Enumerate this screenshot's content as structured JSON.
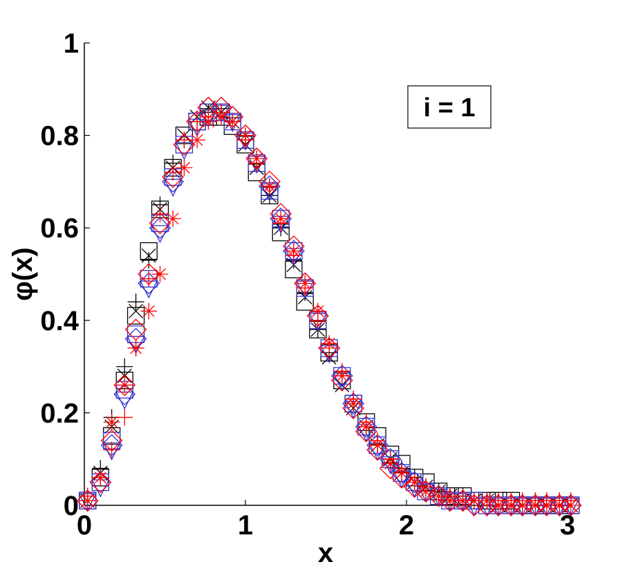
{
  "chart_data": {
    "type": "scatter",
    "title": "",
    "xlabel": "x",
    "ylabel": "φ(x)",
    "xlim": [
      0,
      3
    ],
    "ylim": [
      0,
      1
    ],
    "xticks": [
      "0",
      "1",
      "2",
      "3"
    ],
    "yticks": [
      "0",
      "0.2",
      "0.4",
      "0.6",
      "0.8",
      "1"
    ],
    "grid": false,
    "annotation": "i = 1",
    "annotation_position": "top-right",
    "colors": {
      "black": "#000000",
      "blue": "#3333cc",
      "red": "#ff0000"
    },
    "x": [
      0.02,
      0.1,
      0.17,
      0.25,
      0.32,
      0.4,
      0.47,
      0.55,
      0.62,
      0.7,
      0.77,
      0.85,
      0.92,
      1.0,
      1.07,
      1.15,
      1.22,
      1.3,
      1.37,
      1.45,
      1.52,
      1.6,
      1.67,
      1.75,
      1.82,
      1.9,
      1.97,
      2.05,
      2.12,
      2.2,
      2.27,
      2.35,
      2.42,
      2.5,
      2.57,
      2.65,
      2.72,
      2.8,
      2.87,
      2.95,
      3.02
    ],
    "series": [
      {
        "marker": "plus",
        "color": "#000000",
        "values": [
          0.02,
          0.08,
          0.19,
          0.3,
          0.44,
          0.53,
          0.65,
          0.74,
          0.79,
          0.83,
          0.85,
          0.85,
          0.83,
          0.79,
          0.74,
          0.67,
          0.6,
          0.53,
          0.46,
          0.38,
          0.33,
          0.28,
          0.23,
          0.17,
          0.13,
          0.1,
          0.08,
          0.06,
          0.04,
          0.03,
          0.02,
          0.02,
          0.01,
          0.01,
          0.01,
          0.01,
          0.01,
          0.01,
          0.01,
          0.01,
          0.01
        ]
      },
      {
        "marker": "square",
        "color": "#000000",
        "values": [
          0.01,
          0.06,
          0.15,
          0.27,
          0.41,
          0.55,
          0.64,
          0.73,
          0.8,
          0.83,
          0.84,
          0.84,
          0.82,
          0.78,
          0.72,
          0.67,
          0.59,
          0.51,
          0.44,
          0.38,
          0.33,
          0.27,
          0.22,
          0.18,
          0.15,
          0.11,
          0.09,
          0.06,
          0.05,
          0.03,
          0.02,
          0.02,
          0.01,
          0.01,
          0.01,
          0.01,
          0.0,
          0.0,
          0.0,
          0.0,
          0.0
        ]
      },
      {
        "marker": "cross",
        "color": "#000000",
        "values": [
          0.01,
          0.07,
          0.17,
          0.28,
          0.42,
          0.54,
          0.64,
          0.73,
          0.8,
          0.84,
          0.86,
          0.85,
          0.83,
          0.78,
          0.73,
          0.67,
          0.6,
          0.52,
          0.45,
          0.38,
          0.32,
          0.26,
          0.21,
          0.17,
          0.13,
          0.1,
          0.07,
          0.05,
          0.04,
          0.03,
          0.02,
          0.01,
          0.01,
          0.01,
          0.0,
          0.0,
          0.0,
          0.0,
          0.0,
          0.0,
          0.0
        ]
      },
      {
        "marker": "square",
        "color": "#3333cc",
        "values": [
          0.01,
          0.05,
          0.14,
          0.25,
          0.37,
          0.49,
          0.61,
          0.71,
          0.78,
          0.83,
          0.85,
          0.85,
          0.83,
          0.79,
          0.74,
          0.68,
          0.62,
          0.55,
          0.47,
          0.4,
          0.34,
          0.28,
          0.22,
          0.17,
          0.13,
          0.1,
          0.07,
          0.05,
          0.03,
          0.02,
          0.01,
          0.01,
          0.01,
          0.0,
          0.0,
          0.0,
          0.0,
          0.0,
          0.0,
          0.0,
          0.0
        ]
      },
      {
        "marker": "diamond",
        "color": "#3333cc",
        "values": [
          0.01,
          0.05,
          0.13,
          0.24,
          0.36,
          0.48,
          0.6,
          0.7,
          0.78,
          0.83,
          0.86,
          0.86,
          0.84,
          0.8,
          0.75,
          0.69,
          0.62,
          0.55,
          0.48,
          0.41,
          0.34,
          0.28,
          0.22,
          0.17,
          0.13,
          0.1,
          0.07,
          0.05,
          0.03,
          0.02,
          0.01,
          0.01,
          0.0,
          0.0,
          0.0,
          0.0,
          0.0,
          0.0,
          0.0,
          0.0,
          0.0
        ]
      },
      {
        "marker": "triangle-down",
        "color": "#3333cc",
        "values": [
          0.01,
          0.04,
          0.12,
          0.23,
          0.35,
          0.47,
          0.59,
          0.69,
          0.77,
          0.82,
          0.84,
          0.85,
          0.83,
          0.79,
          0.74,
          0.68,
          0.61,
          0.54,
          0.47,
          0.4,
          0.33,
          0.27,
          0.21,
          0.16,
          0.12,
          0.09,
          0.06,
          0.04,
          0.03,
          0.02,
          0.01,
          0.01,
          0.0,
          0.0,
          0.0,
          0.0,
          0.0,
          0.0,
          0.0,
          0.0,
          0.0
        ]
      },
      {
        "marker": "plus",
        "color": "#ff0000",
        "values": [
          0.02,
          0.06,
          0.12,
          0.19,
          0.34,
          0.49,
          0.63,
          0.72,
          0.79,
          0.83,
          0.84,
          0.85,
          0.83,
          0.79,
          0.74,
          0.69,
          0.61,
          0.54,
          0.47,
          0.4,
          0.34,
          0.29,
          0.23,
          0.18,
          0.14,
          0.1,
          0.07,
          0.05,
          0.04,
          0.02,
          0.02,
          0.01,
          0.01,
          0.01,
          0.01,
          0.01,
          0.01,
          0.01,
          0.01,
          0.01,
          0.01
        ]
      },
      {
        "marker": "diamond",
        "color": "#ff0000",
        "values": [
          0.01,
          0.05,
          0.14,
          0.26,
          0.38,
          0.5,
          0.61,
          0.71,
          0.78,
          0.83,
          0.86,
          0.86,
          0.84,
          0.8,
          0.75,
          0.7,
          0.63,
          0.56,
          0.48,
          0.41,
          0.34,
          0.27,
          0.21,
          0.16,
          0.12,
          0.08,
          0.06,
          0.04,
          0.03,
          0.02,
          0.01,
          0.01,
          0.0,
          0.0,
          0.0,
          0.0,
          0.0,
          0.0,
          0.0,
          0.0,
          0.0
        ]
      },
      {
        "marker": "asterisk",
        "color": "#ff0000",
        "values": [
          0.01,
          0.06,
          0.18,
          0.26,
          0.34,
          0.42,
          0.5,
          0.62,
          0.73,
          0.79,
          0.83,
          0.84,
          0.83,
          0.8,
          0.75,
          0.69,
          0.62,
          0.55,
          0.48,
          0.42,
          0.35,
          0.28,
          0.22,
          0.17,
          0.13,
          0.09,
          0.07,
          0.05,
          0.03,
          0.02,
          0.01,
          0.01,
          0.01,
          0.01,
          0.0,
          0.0,
          0.0,
          0.0,
          0.0,
          0.0,
          0.0
        ]
      }
    ]
  }
}
